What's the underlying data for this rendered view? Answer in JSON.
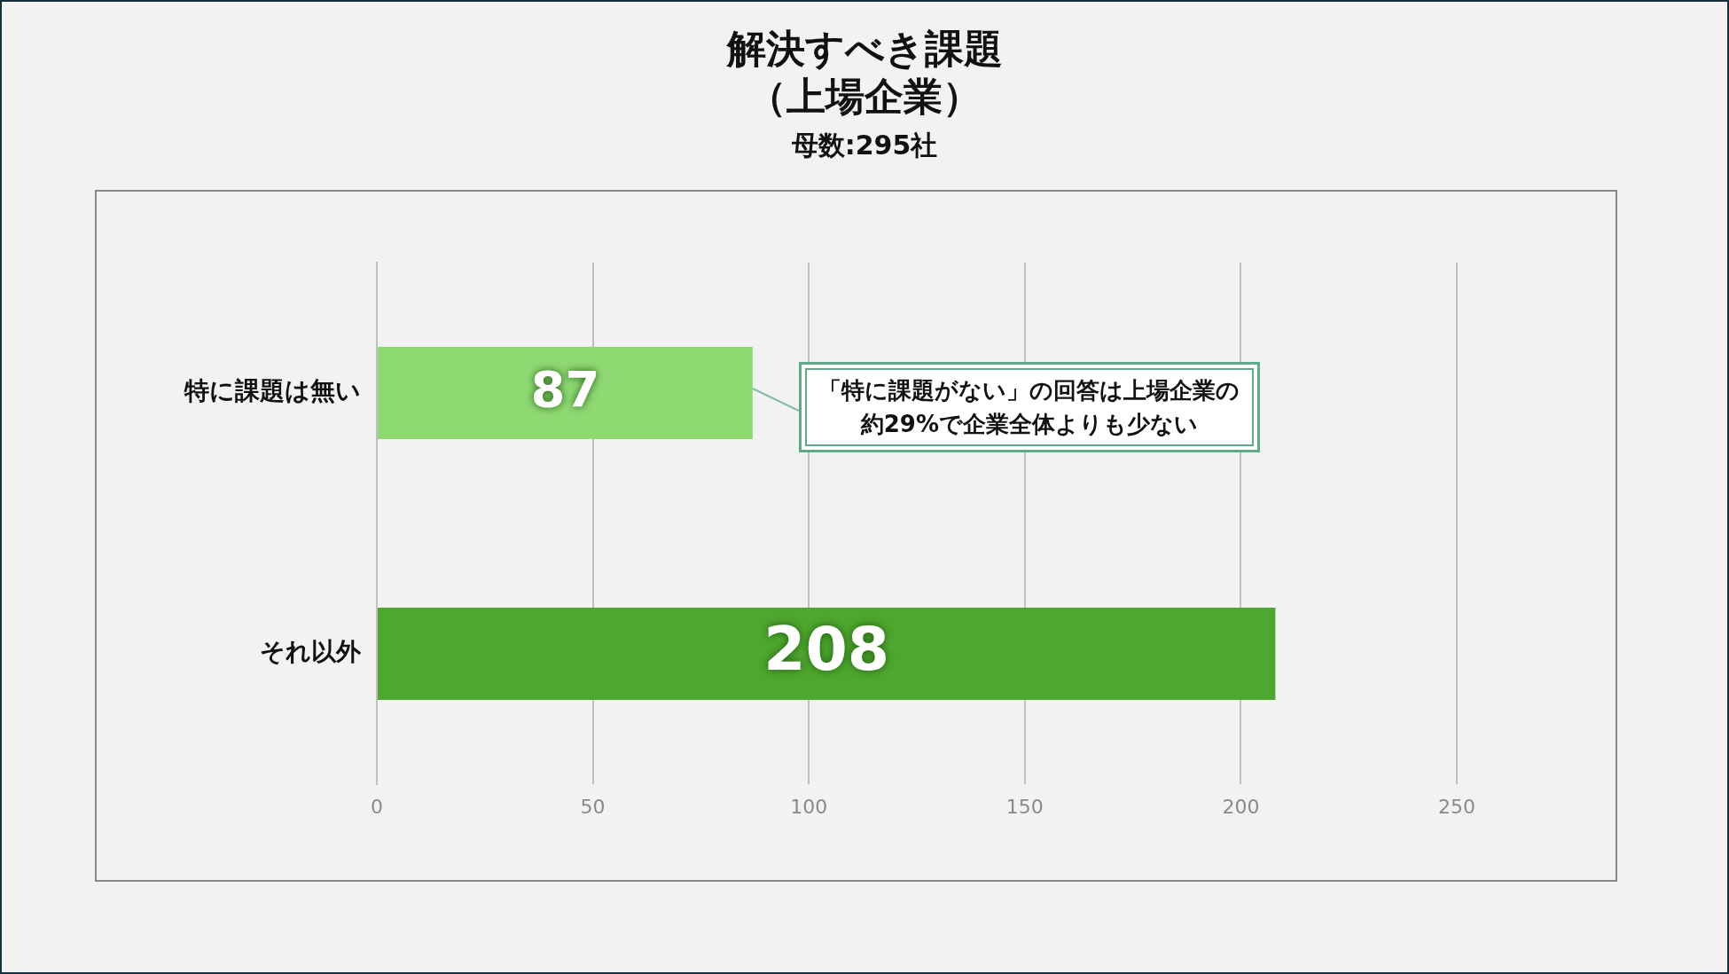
{
  "chart_data": {
    "type": "bar",
    "orientation": "horizontal",
    "title": "解決すべき課題（上場企業）",
    "subtitle": "母数:295社",
    "categories": [
      "特に課題は無い",
      "それ以外"
    ],
    "values": [
      87,
      208
    ],
    "colors": [
      "#8fd973",
      "#4ea72e"
    ],
    "xlim": [
      0,
      250
    ],
    "xticks": [
      0,
      50,
      100,
      150,
      200,
      250
    ],
    "grid": "x",
    "data_labels": true,
    "annotations": [
      {
        "text": "「特に課題がない」の回答は上場企業の約29%で企業全体よりも少ない",
        "x": 87,
        "y": "特に課題は無い"
      }
    ]
  }
}
